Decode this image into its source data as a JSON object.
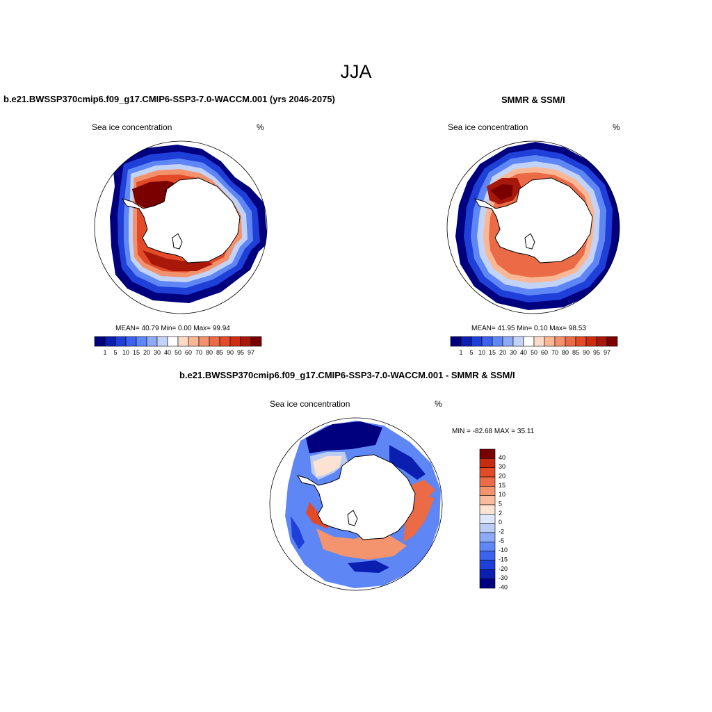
{
  "main_title": "JJA",
  "colors": {
    "abs_palette": [
      "#00007f",
      "#0a1fb0",
      "#1f40d8",
      "#3c62ee",
      "#5f86f5",
      "#8ea9f6",
      "#c3d3f7",
      "#ffffff",
      "#fcdcc8",
      "#f9b795",
      "#f3916c",
      "#eb6b46",
      "#e24a28",
      "#cc2d10",
      "#a8180a",
      "#7a0000"
    ],
    "diff_palette": [
      "#00007f",
      "#0a1fb0",
      "#1f40d8",
      "#3c62ee",
      "#5f86f5",
      "#8ea9f6",
      "#bccdf5",
      "#dfe8fa",
      "#fce2d2",
      "#f8bc9c",
      "#f3946e",
      "#eb6b46",
      "#e24a28",
      "#c62c10",
      "#7a0000"
    ],
    "land": "#ffffff",
    "coast": "#000000"
  },
  "panels": [
    {
      "title": "b.e21.BWSSP370cmip6.f09_g17.CMIP6-SSP3-7.0-WACCM.001 (yrs 2046-2075)",
      "variable": "Sea ice concentration",
      "units": "%",
      "stats": "MEAN=  40.79  Min=   0.00  Max=  99.94",
      "colorbar_labels": [
        "1",
        "5",
        "10",
        "15",
        "20",
        "30",
        "40",
        "50",
        "60",
        "70",
        "80",
        "85",
        "90",
        "95",
        "97"
      ]
    },
    {
      "title": "SMMR & SSM/I",
      "variable": "Sea ice concentration",
      "units": "%",
      "stats": "MEAN=  41.95  Min=   0.10  Max=  98.53",
      "colorbar_labels": [
        "1",
        "5",
        "10",
        "15",
        "20",
        "30",
        "40",
        "50",
        "60",
        "70",
        "80",
        "85",
        "90",
        "95",
        "97"
      ]
    },
    {
      "title": "b.e21.BWSSP370cmip6.f09_g17.CMIP6-SSP3-7.0-WACCM.001 - SMMR & SSM/I",
      "variable": "Sea ice concentration",
      "units": "%",
      "stats": "MIN = -82.68 MAX =  35.11",
      "colorbar_labels": [
        "40",
        "30",
        "20",
        "15",
        "10",
        "5",
        "2",
        "0",
        "-2",
        "-5",
        "-10",
        "-15",
        "-20",
        "-30",
        "-40"
      ]
    }
  ]
}
